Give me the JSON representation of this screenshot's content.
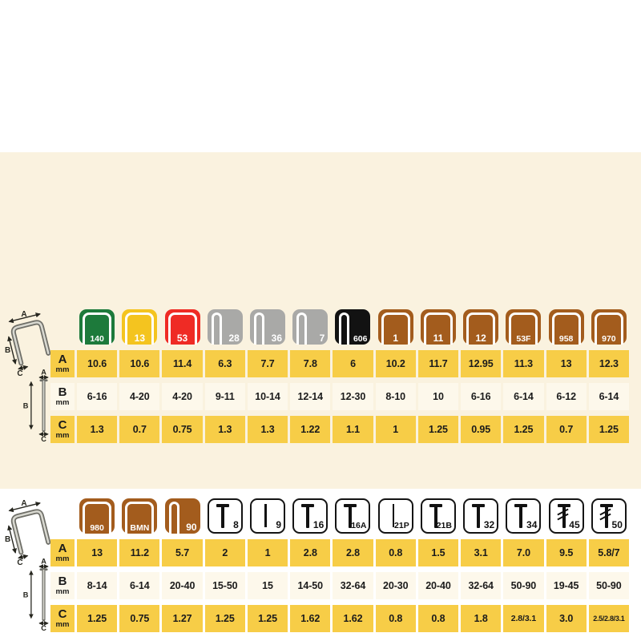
{
  "colors": {
    "panel_bg": "#FAF2DF",
    "row_gold": "#F7CD47",
    "row_cream": "#FDF8EB",
    "text_dark": "#1B1B1B",
    "icon_green": "#1D7A3B",
    "icon_yellow": "#F4C41F",
    "icon_red": "#EF2B25",
    "icon_gray": "#A9A9A7",
    "icon_black": "#121212",
    "icon_brown": "#A35C1D",
    "icon_white": "#FFFFFF"
  },
  "dimension_diagram": {
    "label_a": "A",
    "label_b": "B",
    "label_c": "C"
  },
  "row_labels": [
    {
      "key": "a",
      "label": "A",
      "unit": "mm"
    },
    {
      "key": "b",
      "label": "B",
      "unit": "mm"
    },
    {
      "key": "c",
      "label": "C",
      "unit": "mm"
    }
  ],
  "chart_data": [
    {
      "type": "table",
      "title": "Staple types — dimensions (top table)",
      "columns": [
        {
          "code": "140",
          "glyph": "staple-wide",
          "color_key": "icon_green"
        },
        {
          "code": "13",
          "glyph": "staple-wide",
          "color_key": "icon_yellow"
        },
        {
          "code": "53",
          "glyph": "staple-wide",
          "color_key": "icon_red"
        },
        {
          "code": "28",
          "glyph": "staple-narrow",
          "color_key": "icon_gray"
        },
        {
          "code": "36",
          "glyph": "staple-narrow",
          "color_key": "icon_gray"
        },
        {
          "code": "7",
          "glyph": "staple-narrow",
          "color_key": "icon_gray"
        },
        {
          "code": "606",
          "glyph": "staple-narrow",
          "color_key": "icon_black"
        },
        {
          "code": "1",
          "glyph": "staple-wide",
          "color_key": "icon_brown"
        },
        {
          "code": "11",
          "glyph": "staple-wide",
          "color_key": "icon_brown"
        },
        {
          "code": "12",
          "glyph": "staple-wide",
          "color_key": "icon_brown"
        },
        {
          "code": "53F",
          "glyph": "staple-wide",
          "color_key": "icon_brown"
        },
        {
          "code": "958",
          "glyph": "staple-wide",
          "color_key": "icon_brown"
        },
        {
          "code": "970",
          "glyph": "staple-wide",
          "color_key": "icon_brown"
        }
      ],
      "series": [
        {
          "name": "A mm",
          "values": [
            "10.6",
            "10.6",
            "11.4",
            "6.3",
            "7.7",
            "7.8",
            "6",
            "10.2",
            "11.7",
            "12.95",
            "11.3",
            "13",
            "12.3"
          ]
        },
        {
          "name": "B mm",
          "values": [
            "6-16",
            "4-20",
            "4-20",
            "9-11",
            "10-14",
            "12-14",
            "12-30",
            "8-10",
            "10",
            "6-16",
            "6-14",
            "6-12",
            "6-14"
          ]
        },
        {
          "name": "C mm",
          "values": [
            "1.3",
            "0.7",
            "0.75",
            "1.3",
            "1.3",
            "1.22",
            "1.1",
            "1",
            "1.25",
            "0.95",
            "1.25",
            "0.7",
            "1.25"
          ]
        }
      ]
    },
    {
      "type": "table",
      "title": "Staple & nail types — dimensions (bottom table)",
      "columns": [
        {
          "code": "980",
          "glyph": "staple-wide",
          "color_key": "icon_brown"
        },
        {
          "code": "BMN",
          "glyph": "staple-wide",
          "color_key": "icon_brown"
        },
        {
          "code": "90",
          "glyph": "staple-narrow",
          "color_key": "icon_brown"
        },
        {
          "code": "8",
          "glyph": "nail",
          "color_key": "icon_white"
        },
        {
          "code": "9",
          "glyph": "pin",
          "color_key": "icon_white"
        },
        {
          "code": "16",
          "glyph": "nail",
          "color_key": "icon_white"
        },
        {
          "code": "16A",
          "glyph": "nail",
          "color_key": "icon_white"
        },
        {
          "code": "21P",
          "glyph": "pin",
          "color_key": "icon_white"
        },
        {
          "code": "21B",
          "glyph": "nail",
          "color_key": "icon_white"
        },
        {
          "code": "32",
          "glyph": "nail",
          "color_key": "icon_white"
        },
        {
          "code": "34",
          "glyph": "nail",
          "color_key": "icon_white"
        },
        {
          "code": "45",
          "glyph": "nail-hatch",
          "color_key": "icon_white"
        },
        {
          "code": "50",
          "glyph": "nail-hatch",
          "color_key": "icon_white"
        }
      ],
      "series": [
        {
          "name": "A mm",
          "values": [
            "13",
            "11.2",
            "5.7",
            "2",
            "1",
            "2.8",
            "2.8",
            "0.8",
            "1.5",
            "3.1",
            "7.0",
            "9.5",
            "5.8/7"
          ]
        },
        {
          "name": "B mm",
          "values": [
            "8-14",
            "6-14",
            "20-40",
            "15-50",
            "15",
            "14-50",
            "32-64",
            "20-30",
            "20-40",
            "32-64",
            "50-90",
            "19-45",
            "50-90"
          ]
        },
        {
          "name": "C mm",
          "values": [
            "1.25",
            "0.75",
            "1.27",
            "1.25",
            "1.25",
            "1.62",
            "1.62",
            "0.8",
            "0.8",
            "1.8",
            "2.8/3.1",
            "3.0",
            "2.5/2.8/3.1"
          ]
        }
      ]
    }
  ]
}
